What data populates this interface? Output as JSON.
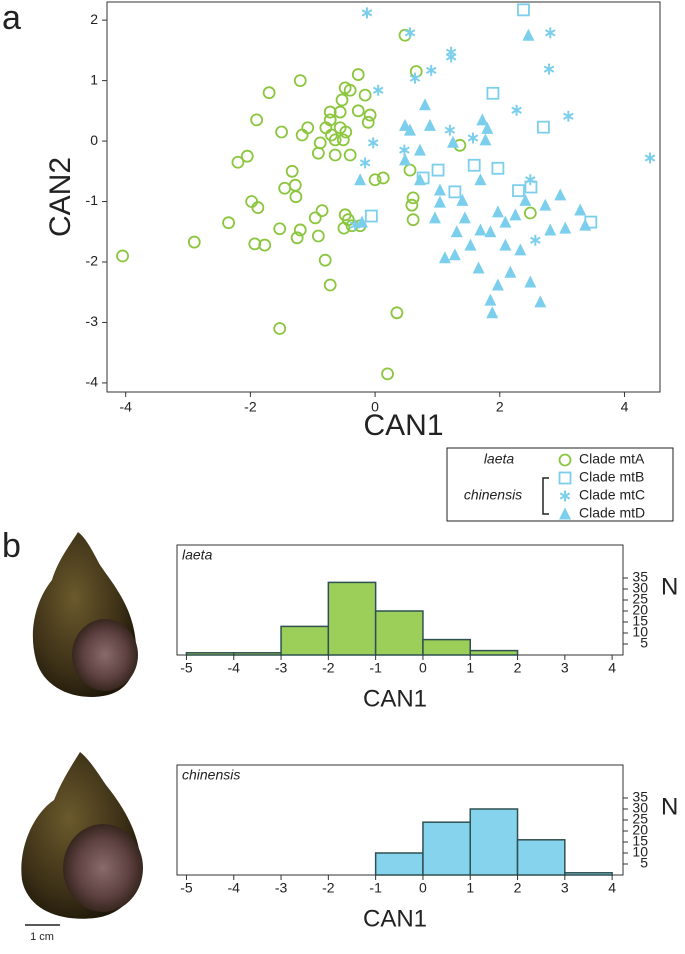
{
  "panel_labels": [
    "a",
    "b"
  ],
  "scale_bar": "1 cm",
  "chart_data": [
    {
      "type": "scatter",
      "xlabel": "CAN1",
      "ylabel": "CAN2",
      "xlim": [
        -4.3,
        4.57
      ],
      "ylim": [
        -4.15,
        2.3
      ],
      "xticks": [
        -4,
        -2,
        0,
        2,
        4
      ],
      "yticks": [
        -4,
        -3,
        -2,
        -1,
        0,
        1,
        2
      ],
      "legend_groups": [
        "laeta",
        "chinensis"
      ],
      "series": [
        {
          "name": "Clade mtA",
          "color": "#8cc63f",
          "marker": "circle",
          "x": [
            -4.05,
            -2.9,
            -2.35,
            -2.2,
            -2.05,
            -1.9,
            -1.98,
            -1.88,
            -1.93,
            -1.77,
            -1.7,
            -1.53,
            -1.53,
            -1.5,
            -1.45,
            -1.33,
            -1.28,
            -1.27,
            -1.25,
            -1.2,
            -1.17,
            -1.2,
            -1.08,
            -0.96,
            -0.91,
            -0.88,
            -0.91,
            -0.85,
            -0.8,
            -0.79,
            -0.72,
            -0.72,
            -0.72,
            -0.7,
            -0.64,
            -0.64,
            -0.56,
            -0.56,
            -0.53,
            -0.51,
            -0.48,
            -0.48,
            -0.47,
            -0.5,
            -0.43,
            -0.4,
            -0.37,
            -0.27,
            -0.27,
            -0.24,
            -0.16,
            -0.11,
            -0.08,
            -0.4,
            0.0,
            0.13,
            0.35,
            0.2,
            0.48,
            0.66,
            0.56,
            0.61,
            0.59,
            0.61,
            1.36,
            2.49
          ],
          "y": [
            -1.9,
            -1.67,
            -1.35,
            -0.35,
            -0.25,
            0.35,
            -1.0,
            -1.1,
            -1.7,
            -1.72,
            0.8,
            -1.45,
            -3.1,
            0.15,
            -0.78,
            -0.5,
            -0.73,
            -0.92,
            -1.6,
            -1.47,
            0.1,
            1.0,
            0.22,
            -1.27,
            -0.2,
            -0.03,
            -1.57,
            -1.15,
            -1.97,
            0.22,
            0.48,
            -2.38,
            0.35,
            0.1,
            0.02,
            -0.23,
            0.22,
            0.48,
            0.68,
            0.02,
            0.88,
            -1.22,
            0.15,
            -1.44,
            -1.3,
            0.84,
            -1.4,
            0.5,
            1.1,
            -1.4,
            0.76,
            0.31,
            0.43,
            -0.23,
            -0.64,
            -0.61,
            -2.84,
            -3.85,
            1.75,
            1.15,
            -0.48,
            -0.94,
            -1.06,
            -1.3,
            -0.07,
            -1.19
          ]
        },
        {
          "name": "Clade mtB",
          "color": "#7ccfec",
          "marker": "square",
          "x": [
            2.38,
            1.89,
            2.7,
            1.59,
            1.97,
            1.01,
            0.77,
            1.28,
            2.3,
            2.5,
            3.46,
            -0.06
          ],
          "y": [
            2.17,
            0.79,
            0.23,
            -0.4,
            -0.45,
            -0.48,
            -0.61,
            -0.84,
            -0.82,
            -0.76,
            -1.34,
            -1.24
          ]
        },
        {
          "name": "Clade mtC",
          "color": "#7ccfec",
          "marker": "asterisk",
          "x": [
            -0.13,
            0.56,
            1.22,
            1.22,
            0.9,
            0.64,
            2.81,
            2.79,
            0.05,
            2.27,
            3.1,
            1.2,
            1.57,
            -0.03,
            0.47,
            -0.16,
            2.49,
            2.57,
            4.41,
            -0.32
          ],
          "y": [
            2.12,
            1.79,
            1.47,
            1.39,
            1.17,
            1.04,
            1.79,
            1.19,
            0.84,
            0.51,
            0.41,
            0.18,
            0.05,
            -0.03,
            -0.15,
            -0.36,
            -0.64,
            -1.64,
            -0.28,
            -1.39
          ]
        },
        {
          "name": "Clade mtD",
          "color": "#7ccfec",
          "marker": "triangle",
          "x": [
            2.46,
            0.8,
            0.48,
            0.56,
            0.88,
            1.25,
            1.72,
            1.8,
            1.77,
            0.48,
            0.72,
            1.04,
            1.04,
            1.4,
            1.69,
            -0.24,
            -0.21,
            1.44,
            1.97,
            2.25,
            2.09,
            1.69,
            1.85,
            1.53,
            1.28,
            1.12,
            2.09,
            2.33,
            2.17,
            1.97,
            1.85,
            1.88,
            2.65,
            2.49,
            2.81,
            3.05,
            3.29,
            3.37,
            2.97,
            2.73,
            2.41,
            1.66,
            0.96,
            1.31,
            0.72
          ],
          "y": [
            1.75,
            0.6,
            0.26,
            0.18,
            0.26,
            -0.02,
            0.35,
            0.21,
            0.02,
            -0.31,
            -0.64,
            -0.81,
            -1.01,
            -0.98,
            -0.64,
            -0.64,
            -1.34,
            -1.27,
            -1.17,
            -1.22,
            -1.34,
            -1.47,
            -1.5,
            -1.72,
            -1.88,
            -1.93,
            -1.72,
            -1.8,
            -2.17,
            -2.38,
            -2.63,
            -2.84,
            -2.66,
            -2.33,
            -1.47,
            -1.44,
            -1.14,
            -1.39,
            -0.89,
            -1.06,
            -0.98,
            -2.1,
            -1.27,
            -1.5,
            -0.15
          ]
        }
      ]
    },
    {
      "type": "histogram",
      "title": "laeta",
      "xlabel": "CAN1",
      "ylabel": "N",
      "color": "#9ccf5a",
      "bins": [
        -5,
        -4,
        -3,
        -2,
        -1,
        0,
        1,
        2,
        3,
        4
      ],
      "values": [
        1,
        1,
        13,
        33,
        20,
        7,
        2,
        0,
        0
      ],
      "xlim": [
        -5.2,
        4.23
      ],
      "ylim": [
        0,
        50
      ],
      "xticks": [
        -5,
        -4,
        -3,
        -2,
        -1,
        0,
        1,
        2,
        3,
        4
      ],
      "yticks": [
        5,
        10,
        15,
        20,
        25,
        30,
        35
      ]
    },
    {
      "type": "histogram",
      "title": "chinensis",
      "xlabel": "CAN1",
      "ylabel": "N",
      "color": "#86d3ee",
      "bins": [
        -5,
        -4,
        -3,
        -2,
        -1,
        0,
        1,
        2,
        3,
        4
      ],
      "values": [
        0,
        0,
        0,
        0,
        10,
        24,
        30,
        16,
        1
      ],
      "xlim": [
        -5.2,
        4.23
      ],
      "ylim": [
        0,
        50
      ],
      "xticks": [
        -5,
        -4,
        -3,
        -2,
        -1,
        0,
        1,
        2,
        3,
        4
      ],
      "yticks": [
        5,
        10,
        15,
        20,
        25,
        30,
        35
      ]
    }
  ]
}
